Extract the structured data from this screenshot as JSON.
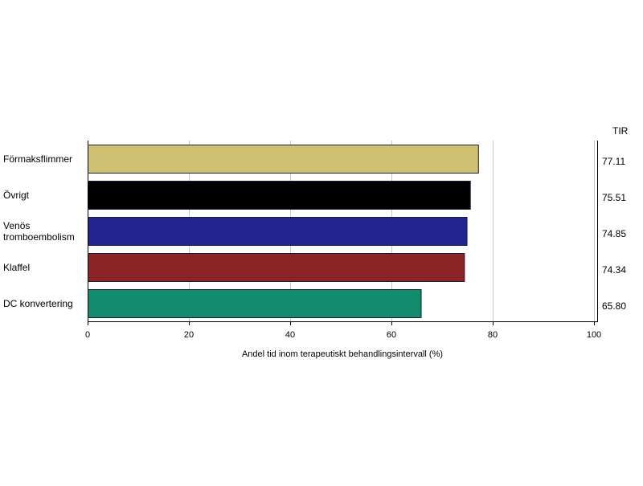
{
  "chart_data": {
    "type": "bar",
    "orientation": "horizontal",
    "categories": [
      "Förmaksflimmer",
      "Övrigt",
      "Venös tromboembolism",
      "Klaffel",
      "DC konvertering"
    ],
    "values": [
      77.11,
      75.51,
      74.85,
      74.34,
      65.8
    ],
    "value_labels": [
      "77.11",
      "75.51",
      "74.85",
      "74.34",
      "65.80"
    ],
    "colors": [
      "#CFC072",
      "#000000",
      "#222591",
      "#8B2426",
      "#128C6C"
    ],
    "xlim": [
      0,
      100
    ],
    "xticks": [
      "0",
      "20",
      "40",
      "60",
      "80",
      "100"
    ],
    "xlabel": "Andel tid inom terapeutiskt behandlingsintervall (%)",
    "value_column_header": "TIR",
    "grid": true
  }
}
